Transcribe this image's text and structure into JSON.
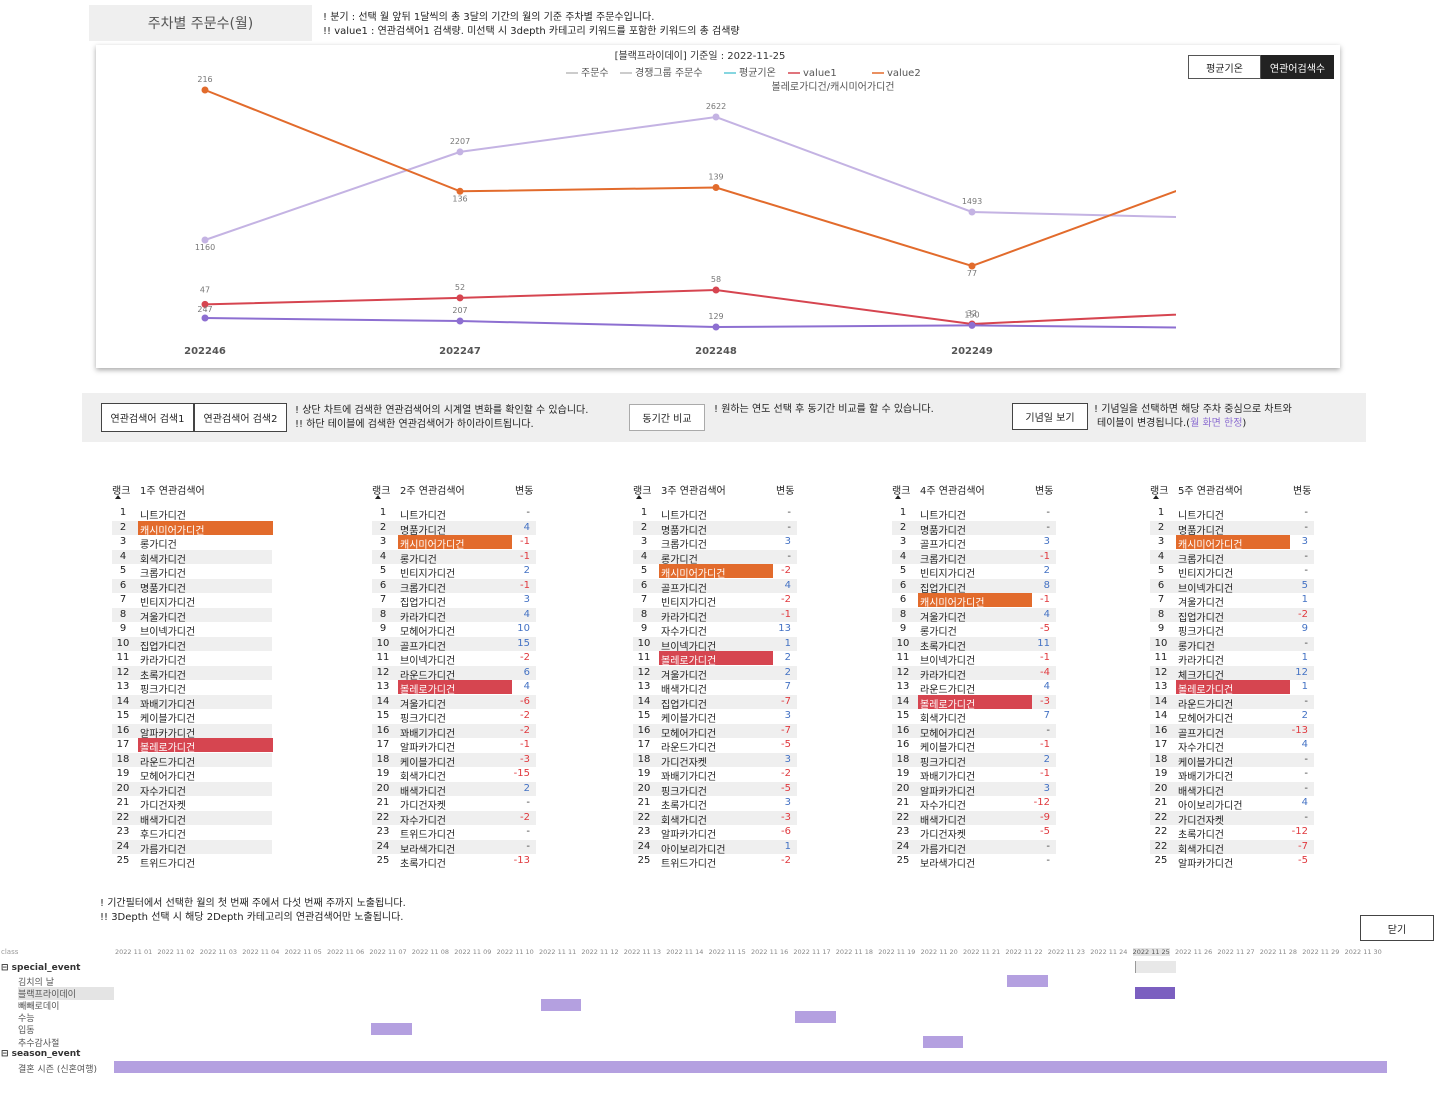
{
  "header": {
    "title": "주차별 주문수(월)",
    "note1": "! 분기 : 선택 월 앞뒤 1달씩의 총 3달의 기간의 월의 기준 주차별 주문수입니다.",
    "note2": "!! value1 : 연관검색어1 검색량. 미선택 시 3depth 카테고리 키워드를 포함한 키워드의 총 검색량"
  },
  "chart_header": {
    "title": "[블랙프라이데이] 기준일 : 2022-11-25",
    "legend": [
      "주문수",
      "경쟁그룹 주문수",
      "평균기온",
      "value1",
      "value2"
    ],
    "subtitle": "볼레로가디건/캐시미어가디건"
  },
  "toggles": {
    "avg": "평균기온",
    "search": "연관어검색수"
  },
  "chart_data": {
    "type": "line",
    "x": [
      "202246",
      "202247",
      "202248",
      "202249",
      "202250"
    ],
    "series": [
      {
        "name": "주문수",
        "values": [
          1160,
          2207,
          2622,
          1493,
          1418
        ],
        "color": "#c4b3e3"
      },
      {
        "name": "value2",
        "values": [
          216,
          136,
          139,
          77,
          151
        ],
        "color": "#e26b2c"
      },
      {
        "name": "value1",
        "values": [
          47,
          52,
          58,
          32,
          41
        ],
        "color": "#d64550"
      },
      {
        "name": "경쟁그룹 주문수",
        "values": [
          247,
          207,
          129,
          150,
          116
        ],
        "color": "#8d6fd1"
      }
    ]
  },
  "controls": {
    "search1": "연관검색어 검색1",
    "search2": "연관검색어 검색2",
    "desc1": "! 상단 차트에 검색한 연관검색어의 시계열 변화를 확인할 수 있습니다.",
    "desc2": "!! 하단 테이블에 검색한 연관검색어가 하이라이트됩니다.",
    "compare": "동기간 비교",
    "compare_desc": "! 원하는 연도 선택 후 동기간 비교를 할 수 있습니다.",
    "anniv": "기념일 보기",
    "anniv_desc1": "! 기념일을 선택하면 해당 주차 중심으로 차트와",
    "anniv_desc2": "테이블이 변경됩니다.(",
    "anniv_desc_link": "월 화면 한정",
    "anniv_desc3": ")"
  },
  "tables": [
    {
      "rank": "랭크",
      "title": "1주 연관검색어",
      "change": "",
      "rows": [
        [
          "1",
          "니트가디건",
          ""
        ],
        [
          "2",
          "캐시미어가디건",
          ""
        ],
        [
          "3",
          "롱가디건",
          ""
        ],
        [
          "4",
          "회색가디건",
          ""
        ],
        [
          "5",
          "크롭가디건",
          ""
        ],
        [
          "6",
          "명품가디건",
          ""
        ],
        [
          "7",
          "빈티지가디건",
          ""
        ],
        [
          "8",
          "겨울가디건",
          ""
        ],
        [
          "9",
          "브이넥가디건",
          ""
        ],
        [
          "10",
          "집업가디건",
          ""
        ],
        [
          "11",
          "카라가디건",
          ""
        ],
        [
          "12",
          "초록가디건",
          ""
        ],
        [
          "13",
          "핑크가디건",
          ""
        ],
        [
          "14",
          "꽈배기가디건",
          ""
        ],
        [
          "15",
          "케이블가디건",
          ""
        ],
        [
          "16",
          "알파카가디건",
          ""
        ],
        [
          "17",
          "볼레로가디건",
          ""
        ],
        [
          "18",
          "라운드가디건",
          ""
        ],
        [
          "19",
          "모헤어가디건",
          ""
        ],
        [
          "20",
          "자수가디건",
          ""
        ],
        [
          "21",
          "가디건자켓",
          ""
        ],
        [
          "22",
          "배색가디건",
          ""
        ],
        [
          "23",
          "후드가디건",
          ""
        ],
        [
          "24",
          "가름가디건",
          ""
        ],
        [
          "25",
          "트위드가디건",
          ""
        ]
      ]
    },
    {
      "rank": "랭크",
      "title": "2주 연관검색어",
      "change": "변동",
      "rows": [
        [
          "1",
          "니트가디건",
          "-"
        ],
        [
          "2",
          "명품가디건",
          "4"
        ],
        [
          "3",
          "캐시미어가디건",
          "-1"
        ],
        [
          "4",
          "롱가디건",
          "-1"
        ],
        [
          "5",
          "빈티지가디건",
          "2"
        ],
        [
          "6",
          "크롭가디건",
          "-1"
        ],
        [
          "7",
          "집업가디건",
          "3"
        ],
        [
          "8",
          "카라가디건",
          "4"
        ],
        [
          "9",
          "모헤어가디건",
          "10"
        ],
        [
          "10",
          "골프가디건",
          "15"
        ],
        [
          "11",
          "브이넥가디건",
          "-2"
        ],
        [
          "12",
          "라운드가디건",
          "6"
        ],
        [
          "13",
          "볼레로가디건",
          "4"
        ],
        [
          "14",
          "겨울가디건",
          "-6"
        ],
        [
          "15",
          "핑크가디건",
          "-2"
        ],
        [
          "16",
          "꽈배기가디건",
          "-2"
        ],
        [
          "17",
          "알파카가디건",
          "-1"
        ],
        [
          "18",
          "케이블가디건",
          "-3"
        ],
        [
          "19",
          "회색가디건",
          "-15"
        ],
        [
          "20",
          "배색가디건",
          "2"
        ],
        [
          "21",
          "가디건자켓",
          "-"
        ],
        [
          "22",
          "자수가디건",
          "-2"
        ],
        [
          "23",
          "트위드가디건",
          "-"
        ],
        [
          "24",
          "보라색가디건",
          "-"
        ],
        [
          "25",
          "초록가디건",
          "-13"
        ]
      ]
    },
    {
      "rank": "랭크",
      "title": "3주 연관검색어",
      "change": "변동",
      "rows": [
        [
          "1",
          "니트가디건",
          "-"
        ],
        [
          "2",
          "명품가디건",
          "-"
        ],
        [
          "3",
          "크롭가디건",
          "3"
        ],
        [
          "4",
          "롱가디건",
          "-"
        ],
        [
          "5",
          "캐시미어가디건",
          "-2"
        ],
        [
          "6",
          "골프가디건",
          "4"
        ],
        [
          "7",
          "빈티지가디건",
          "-2"
        ],
        [
          "8",
          "카라가디건",
          "-1"
        ],
        [
          "9",
          "자수가디건",
          "13"
        ],
        [
          "10",
          "브이넥가디건",
          "1"
        ],
        [
          "11",
          "볼레로가디건",
          "2"
        ],
        [
          "12",
          "겨울가디건",
          "2"
        ],
        [
          "13",
          "배색가디건",
          "7"
        ],
        [
          "14",
          "집업가디건",
          "-7"
        ],
        [
          "15",
          "케이블가디건",
          "3"
        ],
        [
          "16",
          "모헤어가디건",
          "-7"
        ],
        [
          "17",
          "라운드가디건",
          "-5"
        ],
        [
          "18",
          "가디건자켓",
          "3"
        ],
        [
          "19",
          "꽈배기가디건",
          "-2"
        ],
        [
          "20",
          "핑크가디건",
          "-5"
        ],
        [
          "21",
          "초록가디건",
          "3"
        ],
        [
          "22",
          "회색가디건",
          "-3"
        ],
        [
          "23",
          "알파카가디건",
          "-6"
        ],
        [
          "24",
          "아이보리가디건",
          "1"
        ],
        [
          "25",
          "트위드가디건",
          "-2"
        ]
      ]
    },
    {
      "rank": "랭크",
      "title": "4주 연관검색어",
      "change": "변동",
      "rows": [
        [
          "1",
          "니트가디건",
          "-"
        ],
        [
          "2",
          "명품가디건",
          "-"
        ],
        [
          "3",
          "골프가디건",
          "3"
        ],
        [
          "4",
          "크롭가디건",
          "-1"
        ],
        [
          "5",
          "빈티지가디건",
          "2"
        ],
        [
          "6",
          "집업가디건",
          "8"
        ],
        [
          "6",
          "캐시미어가디건",
          "-1"
        ],
        [
          "8",
          "겨울가디건",
          "4"
        ],
        [
          "9",
          "롱가디건",
          "-5"
        ],
        [
          "10",
          "초록가디건",
          "11"
        ],
        [
          "11",
          "브이넥가디건",
          "-1"
        ],
        [
          "12",
          "카라가디건",
          "-4"
        ],
        [
          "13",
          "라운드가디건",
          "4"
        ],
        [
          "14",
          "볼레로가디건",
          "-3"
        ],
        [
          "15",
          "회색가디건",
          "7"
        ],
        [
          "16",
          "모헤어가디건",
          "-"
        ],
        [
          "16",
          "케이블가디건",
          "-1"
        ],
        [
          "18",
          "핑크가디건",
          "2"
        ],
        [
          "19",
          "꽈배기가디건",
          "-1"
        ],
        [
          "20",
          "알파카가디건",
          "3"
        ],
        [
          "21",
          "자수가디건",
          "-12"
        ],
        [
          "22",
          "배색가디건",
          "-9"
        ],
        [
          "23",
          "가디건자켓",
          "-5"
        ],
        [
          "24",
          "가름가디건",
          "-"
        ],
        [
          "25",
          "보라색가디건",
          "-"
        ]
      ]
    },
    {
      "rank": "랭크",
      "title": "5주 연관검색어",
      "change": "변동",
      "rows": [
        [
          "1",
          "니트가디건",
          "-"
        ],
        [
          "2",
          "명품가디건",
          "-"
        ],
        [
          "3",
          "캐시미어가디건",
          "3"
        ],
        [
          "4",
          "크롭가디건",
          "-"
        ],
        [
          "5",
          "빈티지가디건",
          "-"
        ],
        [
          "6",
          "브이넥가디건",
          "5"
        ],
        [
          "7",
          "겨울가디건",
          "1"
        ],
        [
          "8",
          "집업가디건",
          "-2"
        ],
        [
          "9",
          "핑크가디건",
          "9"
        ],
        [
          "10",
          "롱가디건",
          "-"
        ],
        [
          "11",
          "카라가디건",
          "1"
        ],
        [
          "12",
          "체크가디건",
          "12"
        ],
        [
          "13",
          "볼레로가디건",
          "1"
        ],
        [
          "14",
          "라운드가디건",
          "-"
        ],
        [
          "14",
          "모헤어가디건",
          "2"
        ],
        [
          "16",
          "골프가디건",
          "-13"
        ],
        [
          "17",
          "자수가디건",
          "4"
        ],
        [
          "18",
          "케이블가디건",
          "-"
        ],
        [
          "19",
          "꽈배기가디건",
          "-"
        ],
        [
          "20",
          "배색가디건",
          "-"
        ],
        [
          "21",
          "아이보리가디건",
          "4"
        ],
        [
          "22",
          "가디건자켓",
          "-"
        ],
        [
          "22",
          "초록가디건",
          "-12"
        ],
        [
          "22",
          "회색가디건",
          "-7"
        ],
        [
          "25",
          "알파카가디건",
          "-5"
        ]
      ]
    }
  ],
  "footer": {
    "note1": "! 기간필터에서 선택한 월의 첫 번째 주에서 다섯 번째 주까지 노출됩니다.",
    "note2": "!! 3Depth 선택 시 해당 2Depth 카테고리의 연관검색어만 노출됩니다.",
    "close": "닫기"
  },
  "timeline": {
    "class_label": "class",
    "dates": [
      "2022 11 01",
      "2022 11 02",
      "2022 11 03",
      "2022 11 04",
      "2022 11 05",
      "2022 11 06",
      "2022 11 07",
      "2022 11 08",
      "2022 11 09",
      "2022 11 10",
      "2022 11 11",
      "2022 11 12",
      "2022 11 13",
      "2022 11 14",
      "2022 11 15",
      "2022 11 16",
      "2022 11 17",
      "2022 11 18",
      "2022 11 19",
      "2022 11 20",
      "2022 11 21",
      "2022 11 22",
      "2022 11 23",
      "2022 11 24",
      "2022 11 25",
      "2022 11 26",
      "2022 11 27",
      "2022 11 28",
      "2022 11 29",
      "2022 11 30"
    ],
    "selected_date": "2022 11 25",
    "groups": {
      "special": "special_event",
      "season": "season_event"
    },
    "events": [
      {
        "label": "김치의 날",
        "day": 22,
        "selected": false
      },
      {
        "label": "블랙프라이데이",
        "day": 25,
        "selected": true
      },
      {
        "label": "빼빼로데이",
        "day": 11,
        "selected": false
      },
      {
        "label": "수능",
        "day": 17,
        "selected": false
      },
      {
        "label": "입동",
        "day": 7,
        "selected": false
      },
      {
        "label": "추수감사절",
        "day": 20,
        "selected": false
      }
    ],
    "season_events": [
      {
        "label": "결혼 시즌 (신혼여행)",
        "start": 1,
        "end": 30
      }
    ],
    "colors": {
      "bar": "#b4a0e0",
      "selected": "#7b5fc0"
    }
  }
}
